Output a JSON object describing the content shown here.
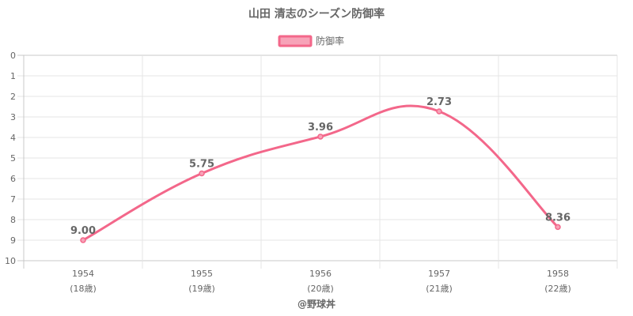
{
  "colors": {
    "line": "#f3678a",
    "fill": "#f7a3b8",
    "grid": "#e5e5e5",
    "axis": "#c8c8c8",
    "text": "#666666"
  },
  "chart_data": {
    "type": "line",
    "title": "山田 清志のシーズン防御率",
    "legend": {
      "label": "防御率",
      "position": "top-center"
    },
    "x": [
      "1954",
      "1955",
      "1956",
      "1957",
      "1958"
    ],
    "x_sublabels": [
      "(18歳)",
      "(19歳)",
      "(20歳)",
      "(21歳)",
      "(22歳)"
    ],
    "series": [
      {
        "name": "防御率",
        "values": [
          9.0,
          5.75,
          3.96,
          2.73,
          8.36
        ],
        "labels": [
          "9.00",
          "5.75",
          "3.96",
          "2.73",
          "8.36"
        ]
      }
    ],
    "y_ticks": [
      "0",
      "1",
      "2",
      "3",
      "4",
      "5",
      "6",
      "7",
      "8",
      "9",
      "10"
    ],
    "ylim": [
      0,
      10
    ],
    "y_reversed": true,
    "grid": true
  },
  "footer": {
    "credit": "@野球丼"
  }
}
